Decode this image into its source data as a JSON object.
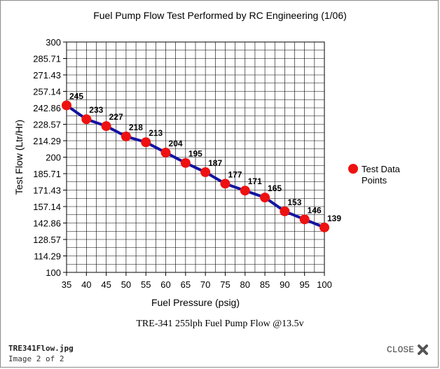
{
  "viewer": {
    "file_name": "TRE341Flow.jpg",
    "image_counter": "Image 2 of 2",
    "close_label": "CLOSE",
    "close_icon": "close-x-icon"
  },
  "chart_data": {
    "type": "line",
    "title": "Fuel Pump Flow Test Performed by RC Engineering (1/06)",
    "subtitle": "TRE-341  255lph Fuel Pump Flow @13.5v",
    "xlabel": "Fuel Pressure (psig)",
    "ylabel": "Test Flow (Ltr/Hr)",
    "xlim": [
      35,
      100
    ],
    "ylim": [
      100,
      300
    ],
    "x_ticks": [
      "35",
      "40",
      "45",
      "50",
      "55",
      "60",
      "65",
      "70",
      "75",
      "80",
      "85",
      "90",
      "95",
      "100"
    ],
    "y_ticks": [
      "100",
      "114.29",
      "128.57",
      "142.86",
      "157.14",
      "171.43",
      "185.71",
      "200",
      "214.29",
      "228.57",
      "242.86",
      "257.14",
      "271.43",
      "285.71",
      "300"
    ],
    "grid": true,
    "legend_position": "right",
    "series": [
      {
        "name": "Test Data Points",
        "color": "#ee1111",
        "line_color": "#1414a0",
        "x": [
          35,
          40,
          45,
          50,
          55,
          60,
          65,
          70,
          75,
          80,
          85,
          90,
          95,
          100
        ],
        "y": [
          245,
          233,
          227,
          218,
          213,
          204,
          195,
          187,
          177,
          171,
          165,
          153,
          146,
          139
        ],
        "labels": [
          "245",
          "233",
          "227",
          "218",
          "213",
          "204",
          "195",
          "187",
          "177",
          "171",
          "165",
          "153",
          "146",
          "139"
        ]
      }
    ]
  }
}
